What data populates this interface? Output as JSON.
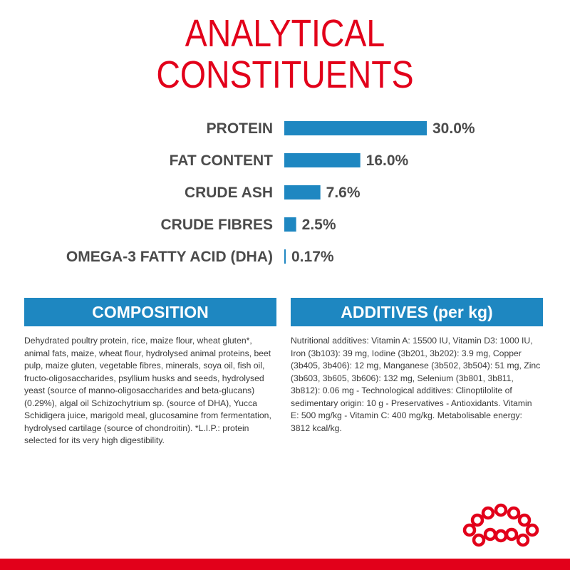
{
  "title": {
    "line1": "ANALYTICAL",
    "line2": "CONSTITUENTS"
  },
  "colors": {
    "brand_red": "#e2001a",
    "bar_blue": "#1e87c1",
    "label_gray": "#4b4b4b"
  },
  "chart_data": {
    "type": "bar",
    "orientation": "horizontal",
    "categories": [
      "PROTEIN",
      "FAT CONTENT",
      "CRUDE ASH",
      "CRUDE FIBRES",
      "OMEGA-3 FATTY ACID (DHA)"
    ],
    "values": [
      30.0,
      16.0,
      7.6,
      2.5,
      0.17
    ],
    "value_labels": [
      "30.0%",
      "16.0%",
      "7.6%",
      "2.5%",
      "0.17%"
    ],
    "grid": false,
    "legend": "none"
  },
  "composition": {
    "header": "COMPOSITION",
    "text": "Dehydrated poultry protein, rice, maize flour, wheat gluten*, animal fats, maize, wheat flour, hydrolysed animal proteins, beet pulp, maize gluten, vegetable fibres, minerals, soya oil, fish oil, fructo-oligosaccharides, psyllium husks and seeds, hydrolysed yeast (source of manno-oligosaccharides and beta-glucans) (0.29%), algal oil Schizochytrium sp. (source of DHA), Yucca Schidigera juice, marigold meal, glucosamine from fermentation, hydrolysed cartilage (source of chondroitin). *L.I.P.: protein selected for its very high digestibility."
  },
  "additives": {
    "header": "ADDITIVES (per kg)",
    "text": "Nutritional additives: Vitamin A: 15500 IU, Vitamin D3: 1000 IU, Iron (3b103): 39 mg, Iodine (3b201, 3b202): 3.9 mg, Copper (3b405, 3b406): 12 mg, Manganese (3b502, 3b504): 51 mg, Zinc (3b603, 3b605, 3b606): 132 mg, Selenium (3b801, 3b811, 3b812): 0.06 mg - Technological additives: Clinoptilolite of sedimentary origin: 10 g - Preservatives - Antioxidants. Vitamin E: 500 mg/kg - Vitamin C: 400 mg/kg. Metabolisable energy: 3812 kcal/kg."
  },
  "logo": {
    "icon": "crown-icon"
  }
}
